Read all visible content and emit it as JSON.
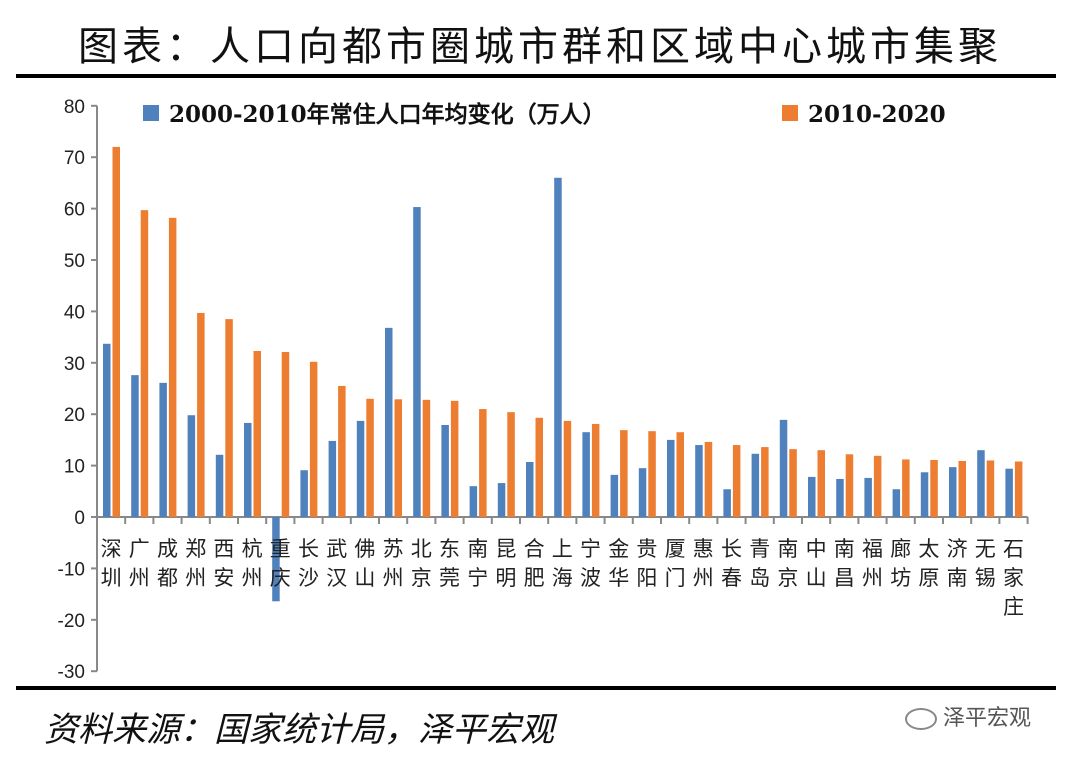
{
  "title": "图表：人口向都市圈城市群和区域中心城市集聚",
  "source": "资料来源：国家统计局，泽平宏观",
  "watermark": "泽平宏观",
  "chart_data": {
    "type": "bar",
    "title": "",
    "xlabel": "",
    "ylabel": "",
    "ylim": [
      -30,
      80
    ],
    "yticks": [
      -30,
      -20,
      -10,
      0,
      10,
      20,
      30,
      40,
      50,
      60,
      70,
      80
    ],
    "grid": false,
    "legend_placement": "top",
    "categories": [
      "深圳",
      "广州",
      "成都",
      "郑州",
      "西安",
      "杭州",
      "重庆",
      "长沙",
      "武汉",
      "佛山",
      "苏州",
      "北京",
      "东莞",
      "南宁",
      "昆明",
      "合肥",
      "上海",
      "宁波",
      "金华",
      "贵阳",
      "厦门",
      "惠州",
      "长春",
      "青岛",
      "南京",
      "中山",
      "南昌",
      "福州",
      "廊坊",
      "太原",
      "济南",
      "无锡",
      "石家庄"
    ],
    "series": [
      {
        "name": "2000-2010年常住人口年均变化（万人）",
        "color": "#4f81bd",
        "values": [
          33.7,
          27.6,
          26.1,
          19.8,
          12.1,
          18.3,
          -16.4,
          9.1,
          14.8,
          18.7,
          36.8,
          60.3,
          17.9,
          6.0,
          6.6,
          10.7,
          66.0,
          16.5,
          8.2,
          9.5,
          15.0,
          14.0,
          5.4,
          12.3,
          18.9,
          7.8,
          7.4,
          7.6,
          5.4,
          8.7,
          9.7,
          13.0,
          9.4
        ]
      },
      {
        "name": "2010-2020",
        "color": "#ed7d31",
        "values": [
          72.0,
          59.7,
          58.2,
          39.7,
          38.5,
          32.3,
          32.1,
          30.2,
          25.5,
          23.0,
          22.9,
          22.8,
          22.6,
          21.0,
          20.4,
          19.3,
          18.7,
          18.1,
          16.9,
          16.7,
          16.5,
          14.6,
          14.0,
          13.6,
          13.2,
          13.0,
          12.2,
          11.9,
          11.2,
          11.1,
          10.9,
          11.0,
          10.8
        ]
      }
    ]
  }
}
